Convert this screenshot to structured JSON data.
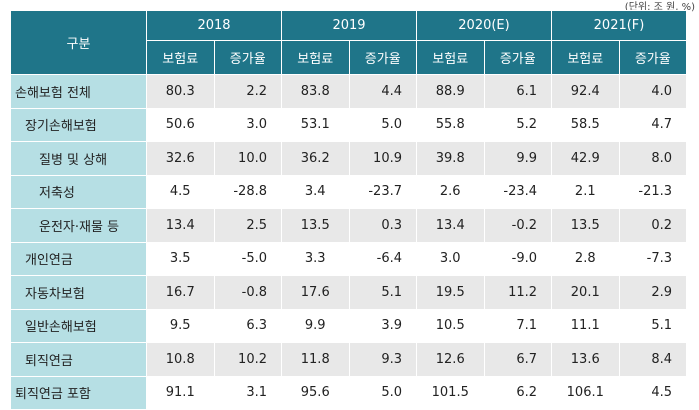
{
  "unit_note": "(단위: 조 원, %)",
  "header": {
    "category": "구분",
    "years": [
      "2018",
      "2019",
      "2020(E)",
      "2021(F)"
    ],
    "sub": [
      "보험료",
      "증가율"
    ]
  },
  "rows": [
    {
      "label": "손해보험 전체",
      "level": 0,
      "values": [
        "80.3",
        "2.2",
        "83.8",
        "4.4",
        "88.9",
        "6.1",
        "92.4",
        "4.0"
      ]
    },
    {
      "label": "장기손해보험",
      "level": 1,
      "values": [
        "50.6",
        "3.0",
        "53.1",
        "5.0",
        "55.8",
        "5.2",
        "58.5",
        "4.7"
      ]
    },
    {
      "label": "질병 및 상해",
      "level": 2,
      "values": [
        "32.6",
        "10.0",
        "36.2",
        "10.9",
        "39.8",
        "9.9",
        "42.9",
        "8.0"
      ]
    },
    {
      "label": "저축성",
      "level": 2,
      "values": [
        "4.5",
        "-28.8",
        "3.4",
        "-23.7",
        "2.6",
        "-23.4",
        "2.1",
        "-21.3"
      ]
    },
    {
      "label": "운전자·재물 등",
      "level": 2,
      "values": [
        "13.4",
        "2.5",
        "13.5",
        "0.3",
        "13.4",
        "-0.2",
        "13.5",
        "0.2"
      ]
    },
    {
      "label": "개인연금",
      "level": 1,
      "values": [
        "3.5",
        "-5.0",
        "3.3",
        "-6.4",
        "3.0",
        "-9.0",
        "2.8",
        "-7.3"
      ]
    },
    {
      "label": "자동차보험",
      "level": 1,
      "values": [
        "16.7",
        "-0.8",
        "17.6",
        "5.1",
        "19.5",
        "11.2",
        "20.1",
        "2.9"
      ]
    },
    {
      "label": "일반손해보험",
      "level": 1,
      "values": [
        "9.5",
        "6.3",
        "9.9",
        "3.9",
        "10.5",
        "7.1",
        "11.1",
        "5.1"
      ]
    },
    {
      "label": "퇴직연금",
      "level": 1,
      "values": [
        "10.8",
        "10.2",
        "11.8",
        "9.3",
        "12.6",
        "6.7",
        "13.6",
        "8.4"
      ]
    },
    {
      "label": "퇴직연금 포함",
      "level": 0,
      "values": [
        "91.1",
        "3.1",
        "95.6",
        "5.0",
        "101.5",
        "6.2",
        "106.1",
        "4.5"
      ]
    }
  ],
  "colors": {
    "header": "#1f7589",
    "label_bg": "#b6dfe4",
    "shade": "#e8e8e8"
  }
}
